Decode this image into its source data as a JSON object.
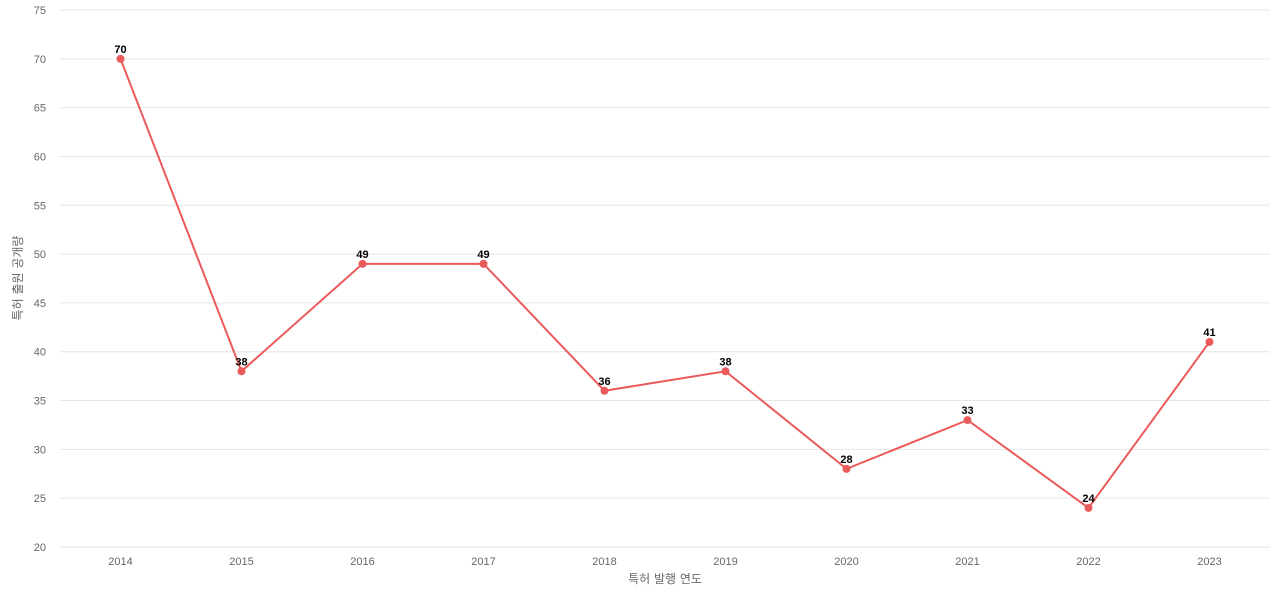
{
  "chart_data": {
    "type": "line",
    "title": "",
    "xlabel": "특허 발행 연도",
    "ylabel": "특허 출원 공개량",
    "x": [
      "2014",
      "2015",
      "2016",
      "2017",
      "2018",
      "2019",
      "2020",
      "2021",
      "2022",
      "2023"
    ],
    "series": [
      {
        "values": [
          70,
          38,
          49,
          49,
          36,
          38,
          28,
          33,
          24,
          41
        ]
      }
    ],
    "ylim": [
      20,
      75
    ],
    "yticks": [
      20,
      25,
      30,
      35,
      40,
      45,
      50,
      55,
      60,
      65,
      70,
      75
    ],
    "grid": true,
    "data_labels": true,
    "line_color": "#eb5a5a",
    "grid_color": "#e6e6e6"
  }
}
